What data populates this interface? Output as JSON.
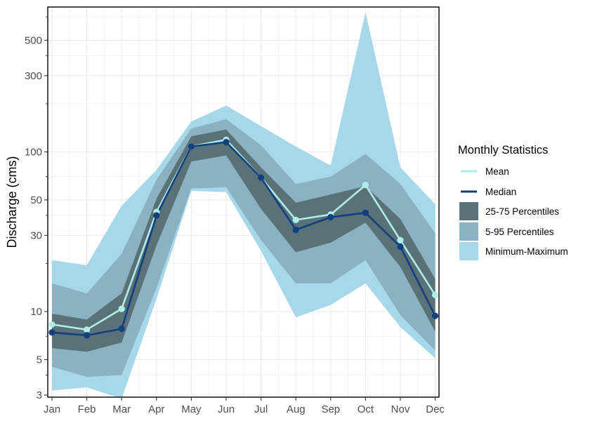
{
  "chart_data": {
    "type": "area",
    "xlabel": "",
    "ylabel": "Discharge (cms)",
    "y_scale": "log",
    "ylim": [
      2.85,
      780
    ],
    "y_ticks": [
      3,
      5,
      10,
      30,
      50,
      100,
      300,
      500
    ],
    "categories": [
      "Jan",
      "Feb",
      "Mar",
      "Apr",
      "May",
      "Jun",
      "Jul",
      "Aug",
      "Sep",
      "Oct",
      "Nov",
      "Dec"
    ],
    "grid": true,
    "legend": {
      "title": "Monthly Statistics",
      "position": "right",
      "entries": [
        "Mean",
        "Median",
        "25-75 Percentiles",
        "5-95 Percentiles",
        "Minimum-Maximum"
      ]
    },
    "colors": {
      "mean": "#aeeee9",
      "median": "#123f7f",
      "p25_75": "#5a7177",
      "p5_95": "#8ab2c3",
      "min_max": "#a6d8ea",
      "grid": "#ebebeb",
      "panel_border": "#000000"
    },
    "series": [
      {
        "name": "Minimum-Maximum",
        "kind": "band",
        "lower": [
          3.2,
          3.35,
          2.85,
          12,
          57,
          56,
          24,
          9.2,
          11,
          15,
          8,
          5.1
        ],
        "upper": [
          21,
          19.5,
          46,
          77,
          155,
          195,
          145,
          108,
          82,
          750,
          80,
          47
        ]
      },
      {
        "name": "5-95 Percentiles",
        "kind": "band",
        "lower": [
          4.5,
          3.9,
          4,
          14,
          59,
          60,
          28,
          15,
          15,
          21,
          9.5,
          5.7
        ],
        "upper": [
          15,
          13,
          23,
          67,
          140,
          160,
          110,
          63,
          70,
          97,
          63,
          31
        ]
      },
      {
        "name": "25-75 Percentiles",
        "kind": "band",
        "lower": [
          5.9,
          5.6,
          6.4,
          26,
          87,
          95,
          44,
          23.5,
          27,
          36,
          19,
          7.5
        ],
        "upper": [
          9.7,
          8.9,
          13,
          51,
          125,
          138,
          80,
          48,
          54,
          61,
          38,
          16
        ]
      },
      {
        "name": "Mean",
        "kind": "line",
        "values": [
          8.3,
          7.7,
          10.4,
          42,
          108,
          119,
          69,
          37.5,
          40.5,
          62,
          28,
          12.7
        ]
      },
      {
        "name": "Median",
        "kind": "line",
        "values": [
          7.4,
          7.1,
          7.8,
          40,
          108,
          115,
          69,
          32.5,
          39,
          41.5,
          25.5,
          9.4
        ]
      }
    ]
  }
}
